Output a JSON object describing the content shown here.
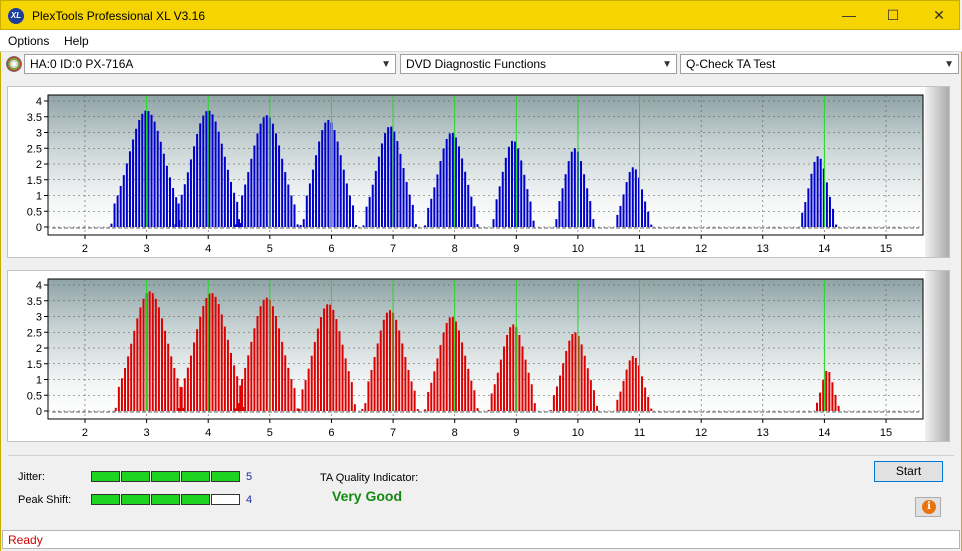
{
  "window": {
    "title": "PlexTools Professional XL V3.16",
    "app_icon_text": "XL",
    "minimize": "—",
    "maximize": "☐",
    "close": "✕",
    "accent_color": "#f5d400"
  },
  "menu": {
    "items": [
      "Options",
      "Help"
    ]
  },
  "toolbar": {
    "drive_select": "HA:0 ID:0  PX-716A",
    "function_select": "DVD Diagnostic Functions",
    "test_select": "Q-Check TA Test",
    "drive_icon": "disc-icon"
  },
  "chart_data": [
    {
      "type": "bar",
      "name": "top",
      "color": "#0000cc",
      "x_ticks": [
        "2",
        "3",
        "4",
        "5",
        "6",
        "7",
        "8",
        "9",
        "10",
        "11",
        "12",
        "13",
        "14",
        "15"
      ],
      "y_ticks": [
        "4",
        "3.5",
        "3",
        "2.5",
        "2",
        "1.5",
        "1",
        "0.5",
        "0"
      ],
      "xlim": [
        1.4,
        15.6
      ],
      "ylim": [
        0,
        4
      ],
      "peak_markers": [
        3,
        4,
        5,
        6,
        7,
        8,
        9,
        10,
        11,
        14
      ],
      "peaks": [
        {
          "center": 3.0,
          "height": 3.7,
          "half_width": 0.52
        },
        {
          "center": 4.0,
          "height": 3.7,
          "half_width": 0.48
        },
        {
          "center": 4.95,
          "height": 3.55,
          "half_width": 0.45
        },
        {
          "center": 5.95,
          "height": 3.4,
          "half_width": 0.4
        },
        {
          "center": 6.95,
          "height": 3.2,
          "half_width": 0.38
        },
        {
          "center": 7.95,
          "height": 3.0,
          "half_width": 0.38
        },
        {
          "center": 8.95,
          "height": 2.75,
          "half_width": 0.32
        },
        {
          "center": 9.95,
          "height": 2.5,
          "half_width": 0.3
        },
        {
          "center": 10.9,
          "height": 1.9,
          "half_width": 0.26
        },
        {
          "center": 13.9,
          "height": 2.25,
          "half_width": 0.26
        }
      ]
    },
    {
      "type": "bar",
      "name": "bottom",
      "color": "#dd0000",
      "x_ticks": [
        "2",
        "3",
        "4",
        "5",
        "6",
        "7",
        "8",
        "9",
        "10",
        "11",
        "12",
        "13",
        "14",
        "15"
      ],
      "y_ticks": [
        "4",
        "3.5",
        "3",
        "2.5",
        "2",
        "1.5",
        "1",
        "0.5",
        "0"
      ],
      "xlim": [
        1.4,
        15.6
      ],
      "ylim": [
        0,
        4
      ],
      "peak_markers": [
        3,
        4,
        5,
        6,
        7,
        8,
        9,
        10,
        11,
        14
      ],
      "peaks": [
        {
          "center": 3.05,
          "height": 3.8,
          "half_width": 0.5
        },
        {
          "center": 4.05,
          "height": 3.75,
          "half_width": 0.48
        },
        {
          "center": 4.95,
          "height": 3.6,
          "half_width": 0.45
        },
        {
          "center": 5.95,
          "height": 3.4,
          "half_width": 0.42
        },
        {
          "center": 6.95,
          "height": 3.2,
          "half_width": 0.4
        },
        {
          "center": 7.95,
          "height": 3.0,
          "half_width": 0.38
        },
        {
          "center": 8.95,
          "height": 2.75,
          "half_width": 0.35
        },
        {
          "center": 9.95,
          "height": 2.5,
          "half_width": 0.34
        },
        {
          "center": 10.9,
          "height": 1.75,
          "half_width": 0.26
        },
        {
          "center": 14.05,
          "height": 1.3,
          "half_width": 0.17
        }
      ]
    }
  ],
  "results": {
    "jitter_label": "Jitter:",
    "jitter_value": "5",
    "jitter_level": 5,
    "peak_shift_label": "Peak Shift:",
    "peak_shift_value": "4",
    "peak_shift_level": 4,
    "max_level": 5,
    "ta_label": "TA Quality Indicator:",
    "ta_value": "Very Good",
    "start_label": "Start",
    "info_icon": "info-icon",
    "info_symbol": "i"
  },
  "status": {
    "text": "Ready"
  }
}
